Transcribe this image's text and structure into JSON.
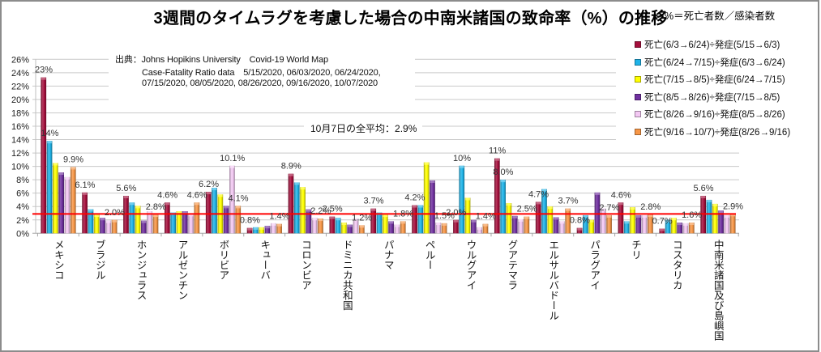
{
  "chart_data": {
    "type": "bar",
    "title": "3週間のタイムラグを考慮した場合の中南米諸国の致命率（%）の推移",
    "note": "%＝死亡者数／感染者数",
    "xlabel": "",
    "ylabel": "",
    "ylim": [
      0,
      26
    ],
    "y_tick_step": 2,
    "y_ticks": [
      "0%",
      "2%",
      "4%",
      "6%",
      "8%",
      "10%",
      "12%",
      "14%",
      "16%",
      "18%",
      "20%",
      "22%",
      "24%",
      "26%"
    ],
    "grid": true,
    "legend_position": "top-right",
    "categories": [
      "メキシコ",
      "ブラジル",
      "ホンジュラス",
      "アルゼンチン",
      "ボリビア",
      "キューバ",
      "コロンビア",
      "ドミニカ共和国",
      "パナマ",
      "ペルー",
      "ウルグアイ",
      "グアテマラ",
      "エルサルバドール",
      "パラグアイ",
      "チリ",
      "コスタリカ",
      "中南米諸国及び島嶼国"
    ],
    "series": [
      {
        "name": "死亡(6/3→6/24)÷発症(5/15→6/3)",
        "color": "#a50f3c",
        "values": [
          23.3,
          6.1,
          5.6,
          4.6,
          6.2,
          0.8,
          8.9,
          2.5,
          3.7,
          4.2,
          2.0,
          11.2,
          4.7,
          0.8,
          4.6,
          0.7,
          5.6
        ]
      },
      {
        "name": "死亡(6/24→7/15)÷発症(6/3→6/24)",
        "color": "#1eb3e8",
        "values": [
          13.8,
          3.6,
          4.6,
          3.1,
          6.8,
          0.9,
          7.6,
          2.3,
          3.1,
          4.2,
          10.1,
          8.0,
          6.6,
          2.7,
          1.8,
          2.0,
          5.0
        ]
      },
      {
        "name": "死亡(7/15→8/5)÷発症(6/24→7/15)",
        "color": "#ffff00",
        "values": [
          10.5,
          2.8,
          4.1,
          3.3,
          5.8,
          0.9,
          6.9,
          1.6,
          2.8,
          10.6,
          5.3,
          4.5,
          4.0,
          2.0,
          3.9,
          2.3,
          4.4
        ]
      },
      {
        "name": "死亡(8/5→8/26)÷発症(7/15→8/5)",
        "color": "#7030a0",
        "values": [
          9.1,
          2.3,
          1.9,
          3.3,
          4.1,
          1.1,
          3.6,
          1.3,
          1.8,
          7.9,
          2.0,
          2.6,
          2.4,
          6.1,
          2.7,
          1.6,
          3.4
        ]
      },
      {
        "name": "死亡(8/26→9/16)÷発症(8/5→8/26)",
        "color": "#f3c8f3",
        "values": [
          8.4,
          1.9,
          3.3,
          2.9,
          10.1,
          1.5,
          2.3,
          2.2,
          1.3,
          1.6,
          0.9,
          2.1,
          1.8,
          3.7,
          2.7,
          1.5,
          2.7
        ]
      },
      {
        "name": "死亡(9/16→10/7)÷発症(8/26→9/16)",
        "color": "#f79646",
        "values": [
          9.9,
          2.0,
          2.8,
          4.6,
          4.1,
          1.4,
          2.2,
          1.2,
          1.8,
          1.5,
          1.4,
          2.5,
          3.7,
          2.7,
          2.8,
          1.6,
          2.9
        ]
      }
    ],
    "data_labels": [
      {
        "category": 0,
        "series": 0,
        "text": "23%"
      },
      {
        "category": 0,
        "series": 1,
        "text": "14%"
      },
      {
        "category": 0,
        "series": 5,
        "text": "9.9%"
      },
      {
        "category": 1,
        "series": 0,
        "text": "6.1%"
      },
      {
        "category": 1,
        "series": 5,
        "text": "2.0%"
      },
      {
        "category": 2,
        "series": 0,
        "text": "5.6%"
      },
      {
        "category": 2,
        "series": 5,
        "text": "2.8%"
      },
      {
        "category": 3,
        "series": 0,
        "text": "4.6%"
      },
      {
        "category": 3,
        "series": 5,
        "text": "4.6%"
      },
      {
        "category": 4,
        "series": 0,
        "text": "6.2%"
      },
      {
        "category": 4,
        "series": 4,
        "text": "10.1%"
      },
      {
        "category": 4,
        "series": 5,
        "text": "4.1%"
      },
      {
        "category": 5,
        "series": 0,
        "text": "0.8%"
      },
      {
        "category": 5,
        "series": 5,
        "text": "1.4%"
      },
      {
        "category": 6,
        "series": 0,
        "text": "8.9%"
      },
      {
        "category": 6,
        "series": 5,
        "text": "2.2%"
      },
      {
        "category": 7,
        "series": 0,
        "text": "2.5%"
      },
      {
        "category": 7,
        "series": 5,
        "text": "1.2%"
      },
      {
        "category": 8,
        "series": 0,
        "text": "3.7%"
      },
      {
        "category": 8,
        "series": 5,
        "text": "1.8%"
      },
      {
        "category": 9,
        "series": 0,
        "text": "4.2%"
      },
      {
        "category": 9,
        "series": 5,
        "text": "1.5%"
      },
      {
        "category": 10,
        "series": 0,
        "text": "2.0%"
      },
      {
        "category": 10,
        "series": 1,
        "text": "10%"
      },
      {
        "category": 10,
        "series": 5,
        "text": "1.4%"
      },
      {
        "category": 11,
        "series": 0,
        "text": "11%"
      },
      {
        "category": 11,
        "series": 1,
        "text": "8.0%"
      },
      {
        "category": 11,
        "series": 5,
        "text": "2.5%"
      },
      {
        "category": 12,
        "series": 0,
        "text": "4.7%"
      },
      {
        "category": 12,
        "series": 5,
        "text": "3.7%"
      },
      {
        "category": 13,
        "series": 0,
        "text": "0.8%"
      },
      {
        "category": 13,
        "series": 5,
        "text": "2.7%"
      },
      {
        "category": 14,
        "series": 0,
        "text": "4.6%"
      },
      {
        "category": 14,
        "series": 5,
        "text": "2.8%"
      },
      {
        "category": 15,
        "series": 0,
        "text": "0.7%"
      },
      {
        "category": 15,
        "series": 5,
        "text": "1.6%"
      },
      {
        "category": 16,
        "series": 0,
        "text": "5.6%"
      },
      {
        "category": 16,
        "series": 5,
        "text": "2.9%"
      }
    ],
    "reference_line": {
      "value": 2.9,
      "color": "#ff0000",
      "label": "10月7日の全平均：2.9%"
    },
    "source_annotation": [
      "出典：Johns Hopikins University　Covid-19 World Map",
      "Case-Fatality Ratio data　5/15/2020, 06/03/2020, 06/24/2020,",
      "07/15/2020, 08/05/2020, 08/26/2020, 09/16/2020, 10/07/2020"
    ],
    "gridline_color": "#c9c9c9"
  }
}
